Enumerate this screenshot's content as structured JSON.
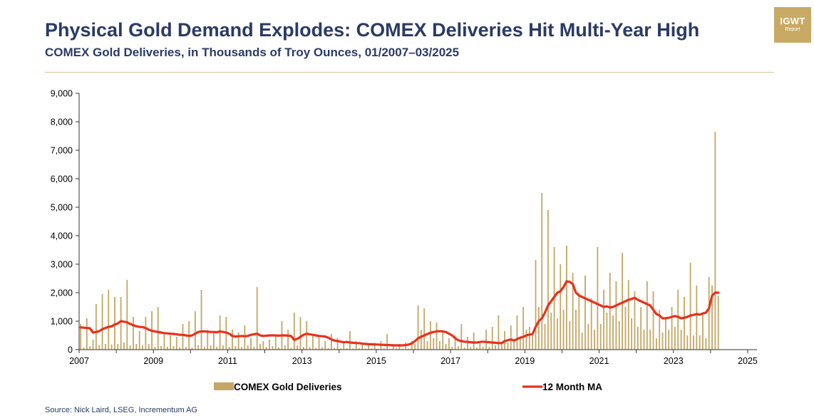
{
  "header": {
    "title": "Physical Gold Demand Explodes: COMEX Deliveries Hit Multi-Year High",
    "subtitle": "COMEX Gold Deliveries, in Thousands of Troy Ounces, 01/2007–03/2025"
  },
  "logo": {
    "main": "IGWT",
    "sub": "Report"
  },
  "source": "Source: Nick Laird, LSEG, Incrementum AG",
  "colors": {
    "bars": "#c4a765",
    "ma_line": "#e8311c",
    "axis": "#333333",
    "title": "#2b3a66"
  },
  "chart_data": {
    "type": "bar",
    "title": "COMEX Gold Deliveries",
    "xlabel": "",
    "ylabel": "",
    "x_range": [
      2007.0,
      2025.25
    ],
    "ylim": [
      0,
      9000
    ],
    "yticks": [
      0,
      1000,
      2000,
      3000,
      4000,
      5000,
      6000,
      7000,
      8000,
      9000
    ],
    "ytick_labels": [
      "0",
      "1,000",
      "2,000",
      "3,000",
      "4,000",
      "5,000",
      "6,000",
      "7,000",
      "8,000",
      "9,000"
    ],
    "xticks": [
      2007,
      2009,
      2011,
      2013,
      2015,
      2017,
      2019,
      2021,
      2023,
      2025
    ],
    "xtick_labels": [
      "2007",
      "2009",
      "2011",
      "2013",
      "2015",
      "2017",
      "2019",
      "2021",
      "2023",
      "2025"
    ],
    "grid": false,
    "legend_position": "bottom",
    "series": [
      {
        "name": "COMEX Gold Deliveries",
        "kind": "bar",
        "color": "#c4a765",
        "x_start": 2007.0,
        "x_step": 0.0833333,
        "values": [
          900,
          80,
          1100,
          120,
          350,
          1600,
          150,
          1950,
          200,
          2100,
          180,
          1850,
          200,
          1850,
          250,
          2450,
          150,
          1150,
          200,
          650,
          150,
          1150,
          200,
          1350,
          100,
          1500,
          120,
          600,
          100,
          500,
          120,
          450,
          80,
          900,
          100,
          1000,
          80,
          1350,
          150,
          2100,
          100,
          700,
          150,
          600,
          100,
          1200,
          150,
          1150,
          100,
          700,
          120,
          600,
          100,
          850,
          150,
          400,
          100,
          2200,
          200,
          300,
          100,
          350,
          120,
          500,
          80,
          1000,
          150,
          700,
          60,
          1300,
          150,
          1150,
          100,
          1000,
          80,
          550,
          60,
          500,
          80,
          300,
          50,
          550,
          60,
          400,
          40,
          300,
          50,
          650,
          40,
          300,
          50,
          250,
          40,
          200,
          50,
          250,
          30,
          300,
          40,
          550,
          30,
          200,
          40,
          200,
          30,
          250,
          40,
          300,
          200,
          1550,
          700,
          1450,
          300,
          1000,
          400,
          950,
          300,
          600,
          200,
          400,
          100,
          500,
          120,
          900,
          80,
          450,
          100,
          600,
          80,
          300,
          100,
          700,
          100,
          800,
          150,
          1200,
          200,
          650,
          250,
          850,
          300,
          1200,
          400,
          1500,
          700,
          800,
          500,
          3150,
          1500,
          5500,
          900,
          4900,
          1300,
          3600,
          1100,
          3000,
          1400,
          3650,
          1000,
          2700,
          1400,
          2000,
          600,
          2600,
          900,
          1800,
          700,
          3600,
          900,
          2100,
          1300,
          2700,
          1200,
          2400,
          1000,
          3400,
          1500,
          2450,
          1100,
          2050,
          800,
          1500,
          700,
          2400,
          700,
          2050,
          400,
          1400,
          600,
          1150,
          700,
          1500,
          800,
          2100,
          700,
          1850,
          500,
          3050,
          500,
          2250,
          500,
          1300,
          400,
          2550,
          2250,
          7650,
          1900
        ]
      },
      {
        "name": "12 Month MA",
        "kind": "line",
        "color": "#e8311c",
        "x_start": 2007.0,
        "x_step": 0.0833333,
        "values": [
          780,
          770,
          760,
          750,
          600,
          620,
          650,
          720,
          760,
          800,
          820,
          880,
          920,
          1000,
          980,
          960,
          900,
          860,
          820,
          800,
          790,
          760,
          700,
          660,
          640,
          620,
          600,
          580,
          570,
          560,
          550,
          540,
          520,
          520,
          500,
          480,
          500,
          560,
          620,
          640,
          640,
          630,
          620,
          620,
          610,
          640,
          620,
          600,
          560,
          480,
          460,
          470,
          480,
          470,
          480,
          520,
          540,
          560,
          500,
          480,
          490,
          500,
          500,
          500,
          490,
          500,
          500,
          490,
          480,
          340,
          380,
          450,
          520,
          560,
          540,
          520,
          500,
          480,
          470,
          460,
          420,
          360,
          320,
          300,
          280,
          260,
          270,
          250,
          240,
          230,
          230,
          210,
          200,
          190,
          190,
          180,
          180,
          170,
          170,
          160,
          160,
          150,
          150,
          150,
          150,
          160,
          180,
          220,
          300,
          400,
          450,
          500,
          550,
          590,
          620,
          640,
          650,
          640,
          620,
          560,
          500,
          400,
          330,
          300,
          280,
          270,
          260,
          250,
          250,
          270,
          280,
          270,
          260,
          250,
          240,
          230,
          230,
          300,
          330,
          360,
          320,
          370,
          420,
          450,
          500,
          530,
          550,
          800,
          1000,
          1100,
          1300,
          1550,
          1700,
          1850,
          2000,
          2050,
          2200,
          2400,
          2380,
          2300,
          2000,
          1900,
          1850,
          1800,
          1750,
          1700,
          1650,
          1600,
          1550,
          1500,
          1520,
          1480,
          1500,
          1550,
          1600,
          1650,
          1700,
          1750,
          1780,
          1820,
          1750,
          1700,
          1650,
          1600,
          1550,
          1400,
          1250,
          1200,
          1100,
          1100,
          1120,
          1150,
          1180,
          1150,
          1100,
          1120,
          1150,
          1200,
          1220,
          1250,
          1230,
          1270,
          1300,
          1450,
          1900,
          2000,
          2000
        ]
      }
    ]
  }
}
